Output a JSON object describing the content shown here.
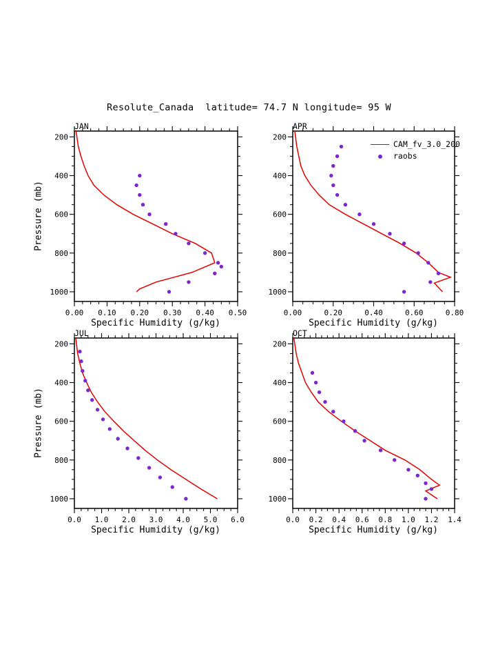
{
  "page": {
    "title": "Resolute_Canada  latitude= 74.7 N longitude= 95 W",
    "xlabel": "Specific Humidity (g/kg)",
    "ylabel": "Pressure (mb)"
  },
  "legend": {
    "entries": [
      {
        "label": "CAM_fv_3.0_200",
        "series": "model",
        "marker": "line"
      },
      {
        "label": "raobs",
        "series": "raobs",
        "marker": "dot"
      }
    ]
  },
  "colors": {
    "model_line": "#e60000",
    "raobs_dot": "#7d26cd",
    "axis": "#000000",
    "background": "#ffffff"
  },
  "chart_data": [
    {
      "type": "line",
      "panel": "JAN",
      "xlabel": "Specific Humidity (g/kg)",
      "ylabel": "Pressure (mb)",
      "x_axis": {
        "lim": [
          0.0,
          0.5
        ],
        "ticks": [
          0.0,
          0.1,
          0.2,
          0.3,
          0.4,
          0.5
        ],
        "tick_labels": [
          "0.00",
          "0.10",
          "0.20",
          "0.30",
          "0.40",
          "0.50"
        ],
        "minor_step": 0.025
      },
      "y_axis": {
        "lim_top": 170,
        "lim_bottom": 1050,
        "ticks": [
          200,
          400,
          600,
          800,
          1000
        ],
        "tick_labels": [
          "200",
          "400",
          "600",
          "800",
          "1000"
        ],
        "minor_step": 50
      },
      "series": [
        {
          "name": "CAM_fv_3.0_200",
          "style": "line",
          "pressure_mb": [
            170,
            250,
            300,
            350,
            400,
            450,
            500,
            550,
            600,
            650,
            700,
            750,
            800,
            850,
            900,
            950,
            985,
            1000
          ],
          "q_g_per_kg": [
            0.005,
            0.012,
            0.02,
            0.03,
            0.042,
            0.06,
            0.09,
            0.13,
            0.18,
            0.24,
            0.3,
            0.37,
            0.42,
            0.43,
            0.36,
            0.25,
            0.2,
            0.19
          ]
        },
        {
          "name": "raobs",
          "style": "dots",
          "pressure_mb": [
            400,
            450,
            500,
            550,
            600,
            650,
            700,
            750,
            800,
            850,
            870,
            905,
            950,
            1000
          ],
          "q_g_per_kg": [
            0.2,
            0.19,
            0.2,
            0.21,
            0.23,
            0.28,
            0.31,
            0.35,
            0.4,
            0.44,
            0.45,
            0.43,
            0.35,
            0.29
          ]
        }
      ]
    },
    {
      "type": "line",
      "panel": "APR",
      "xlabel": "Specific Humidity (g/kg)",
      "ylabel": "Pressure (mb)",
      "x_axis": {
        "lim": [
          0.0,
          0.8
        ],
        "ticks": [
          0.0,
          0.2,
          0.4,
          0.6,
          0.8
        ],
        "tick_labels": [
          "0.00",
          "0.20",
          "0.40",
          "0.60",
          "0.80"
        ],
        "minor_step": 0.05
      },
      "y_axis": {
        "lim_top": 170,
        "lim_bottom": 1050,
        "ticks": [
          200,
          400,
          600,
          800,
          1000
        ],
        "tick_labels": [
          "200",
          "400",
          "600",
          "800",
          "1000"
        ],
        "minor_step": 50
      },
      "series": [
        {
          "name": "CAM_fv_3.0_200",
          "style": "line",
          "pressure_mb": [
            170,
            250,
            300,
            350,
            400,
            450,
            500,
            550,
            600,
            650,
            700,
            750,
            800,
            850,
            900,
            925,
            955,
            1000
          ],
          "q_g_per_kg": [
            0.01,
            0.02,
            0.03,
            0.04,
            0.06,
            0.09,
            0.13,
            0.18,
            0.26,
            0.35,
            0.44,
            0.53,
            0.61,
            0.67,
            0.72,
            0.78,
            0.7,
            0.74
          ]
        },
        {
          "name": "raobs",
          "style": "dots",
          "pressure_mb": [
            250,
            300,
            350,
            400,
            450,
            500,
            550,
            600,
            650,
            700,
            750,
            800,
            850,
            905,
            950,
            1000
          ],
          "q_g_per_kg": [
            0.24,
            0.22,
            0.2,
            0.19,
            0.2,
            0.22,
            0.26,
            0.33,
            0.4,
            0.48,
            0.55,
            0.62,
            0.67,
            0.72,
            0.68,
            0.55
          ]
        }
      ]
    },
    {
      "type": "line",
      "panel": "JUL",
      "xlabel": "Specific Humidity (g/kg)",
      "ylabel": "Pressure (mb)",
      "x_axis": {
        "lim": [
          0.0,
          6.0
        ],
        "ticks": [
          0.0,
          1.0,
          2.0,
          3.0,
          4.0,
          5.0,
          6.0
        ],
        "tick_labels": [
          "0.0",
          "1.0",
          "2.0",
          "3.0",
          "4.0",
          "5.0",
          "6.0"
        ],
        "minor_step": 0.25
      },
      "y_axis": {
        "lim_top": 170,
        "lim_bottom": 1050,
        "ticks": [
          200,
          400,
          600,
          800,
          1000
        ],
        "tick_labels": [
          "200",
          "400",
          "600",
          "800",
          "1000"
        ],
        "minor_step": 50
      },
      "series": [
        {
          "name": "CAM_fv_3.0_200",
          "style": "line",
          "pressure_mb": [
            170,
            250,
            300,
            350,
            400,
            450,
            500,
            550,
            600,
            650,
            700,
            750,
            800,
            850,
            900,
            950,
            1000
          ],
          "q_g_per_kg": [
            0.05,
            0.12,
            0.2,
            0.3,
            0.45,
            0.62,
            0.85,
            1.12,
            1.45,
            1.8,
            2.2,
            2.6,
            3.05,
            3.55,
            4.1,
            4.65,
            5.25
          ]
        },
        {
          "name": "raobs",
          "style": "dots",
          "pressure_mb": [
            240,
            290,
            340,
            390,
            440,
            490,
            540,
            590,
            640,
            690,
            740,
            790,
            840,
            890,
            940,
            1000
          ],
          "q_g_per_kg": [
            0.2,
            0.25,
            0.3,
            0.4,
            0.5,
            0.65,
            0.85,
            1.05,
            1.3,
            1.6,
            1.95,
            2.35,
            2.75,
            3.15,
            3.6,
            4.1
          ]
        }
      ]
    },
    {
      "type": "line",
      "panel": "OCT",
      "xlabel": "Specific Humidity (g/kg)",
      "ylabel": "Pressure (mb)",
      "x_axis": {
        "lim": [
          0.0,
          1.4
        ],
        "ticks": [
          0.0,
          0.2,
          0.4,
          0.6,
          0.8,
          1.0,
          1.2,
          1.4
        ],
        "tick_labels": [
          "0.0",
          "0.2",
          "0.4",
          "0.6",
          "0.8",
          "1.0",
          "1.2",
          "1.4"
        ],
        "minor_step": 0.05
      },
      "y_axis": {
        "lim_top": 170,
        "lim_bottom": 1050,
        "ticks": [
          200,
          400,
          600,
          800,
          1000
        ],
        "tick_labels": [
          "200",
          "400",
          "600",
          "800",
          "1000"
        ],
        "minor_step": 50
      },
      "series": [
        {
          "name": "CAM_fv_3.0_200",
          "style": "line",
          "pressure_mb": [
            170,
            250,
            300,
            350,
            400,
            450,
            500,
            550,
            600,
            650,
            700,
            750,
            800,
            850,
            900,
            930,
            960,
            1000
          ],
          "q_g_per_kg": [
            0.01,
            0.03,
            0.05,
            0.08,
            0.11,
            0.16,
            0.22,
            0.31,
            0.42,
            0.54,
            0.67,
            0.8,
            0.97,
            1.1,
            1.2,
            1.27,
            1.15,
            1.25
          ]
        },
        {
          "name": "raobs",
          "style": "dots",
          "pressure_mb": [
            350,
            400,
            450,
            500,
            550,
            600,
            650,
            700,
            750,
            800,
            850,
            880,
            920,
            950,
            1000
          ],
          "q_g_per_kg": [
            0.17,
            0.2,
            0.23,
            0.28,
            0.35,
            0.44,
            0.54,
            0.62,
            0.76,
            0.88,
            1.0,
            1.08,
            1.15,
            1.2,
            1.15
          ]
        }
      ]
    }
  ]
}
